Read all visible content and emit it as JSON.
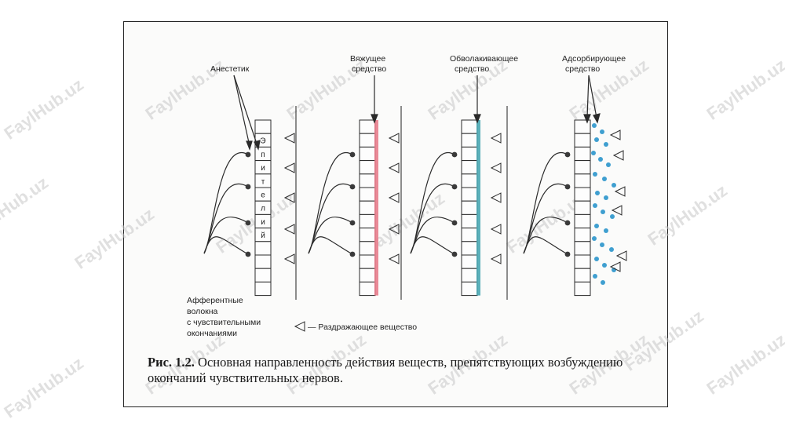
{
  "labels": {
    "anesthetic": "Анестетик",
    "astringent_line1": "Вяжущее",
    "astringent_line2": "средство",
    "coating_line1": "Обволакивающее",
    "coating_line2": "средство",
    "adsorbent_line1": "Адсорбирующее",
    "adsorbent_line2": "средство",
    "epithelium_letters": [
      "Э",
      "п",
      "и",
      "т",
      "е",
      "л",
      "и",
      "й"
    ],
    "afferent_line1": "Афферентные",
    "afferent_line2": "волокна",
    "afferent_line3": "с чувствительными",
    "afferent_line4": "окончаниями",
    "irritant_legend": "— Раздражающее вещество"
  },
  "caption": {
    "number": "Рис. 1.2.",
    "text": "Основная направленность действия веществ, препятствующих возбуждению окончаний чувствительных нервов."
  },
  "watermark": {
    "text": "FaylHub.uz"
  },
  "colors": {
    "astringent_layer": "#e87c8c",
    "coating_layer": "#4aa9b4",
    "adsorbent_dots": "#3f9fd0",
    "ink": "#2a2a2a"
  }
}
